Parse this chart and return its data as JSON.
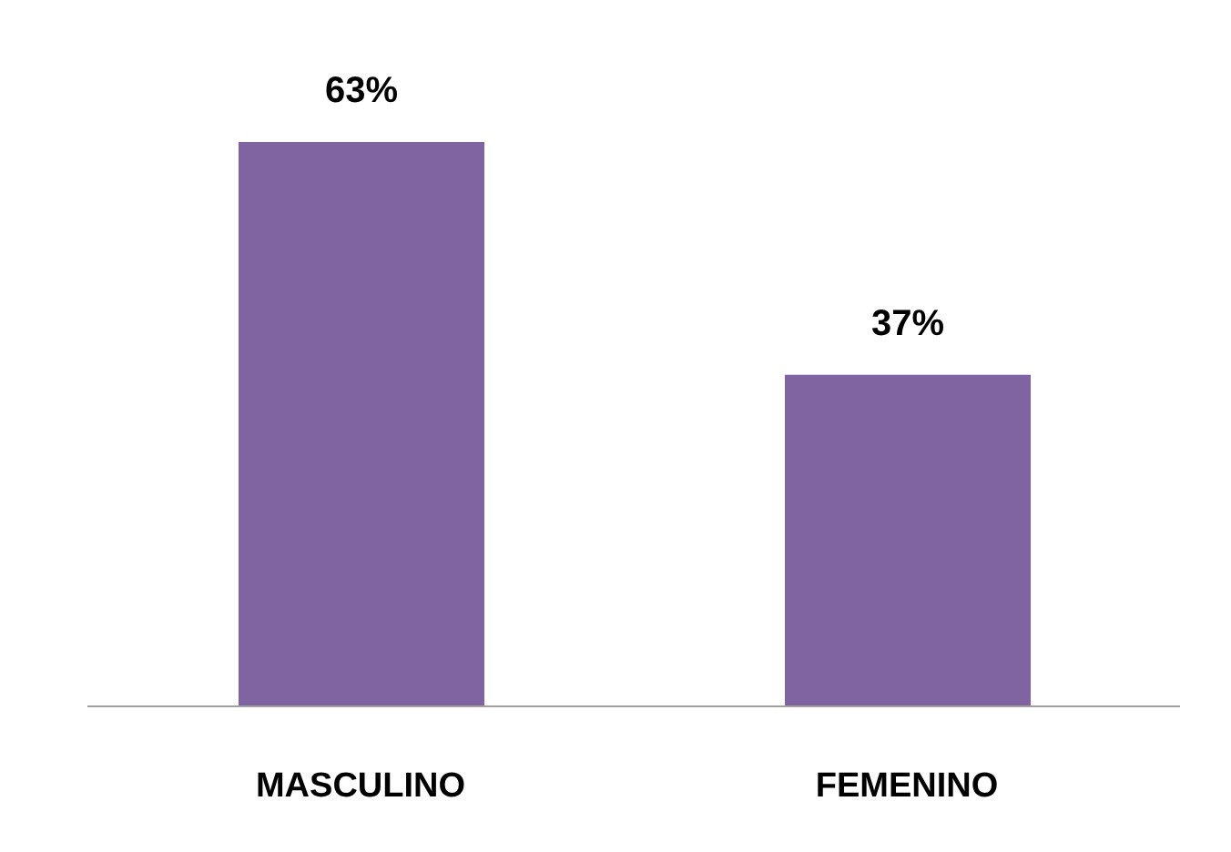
{
  "chart_data": {
    "type": "bar",
    "categories": [
      "MASCULINO",
      "FEMENINO"
    ],
    "values": [
      63,
      37
    ],
    "color": "#8064a2",
    "value_labels": [
      "63%",
      "37%"
    ]
  }
}
